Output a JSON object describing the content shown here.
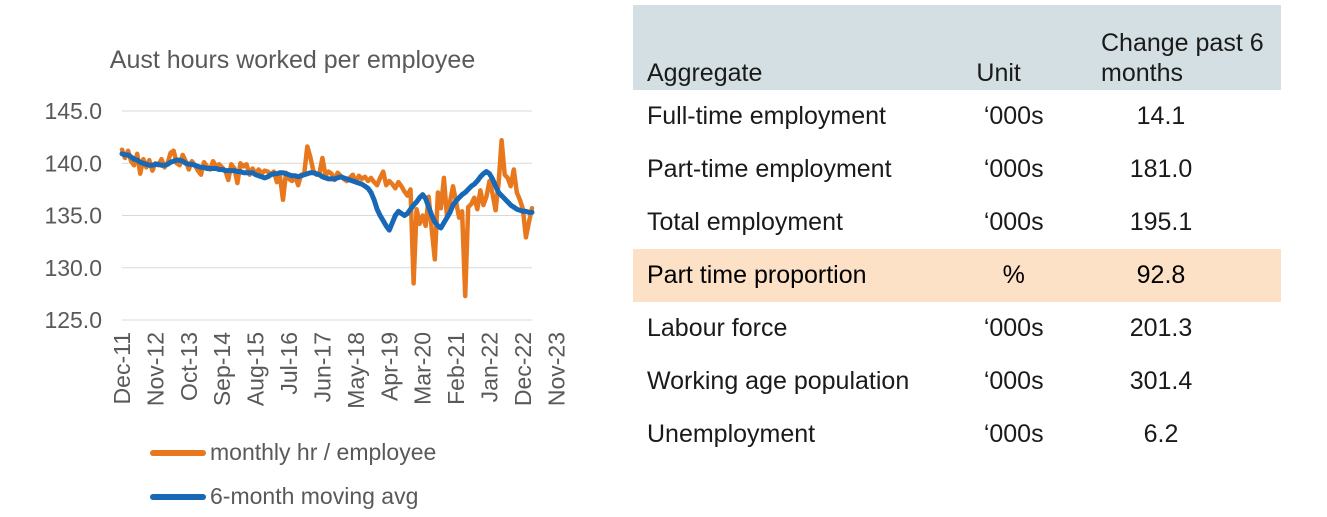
{
  "chart_data": {
    "type": "line",
    "title": "Aust hours worked per employee",
    "xlabel": "",
    "ylabel": "",
    "ylim": [
      125,
      145
    ],
    "yticks": [
      "125.0",
      "130.0",
      "135.0",
      "140.0",
      "145.0"
    ],
    "xticks": [
      "Dec-11",
      "Nov-12",
      "Oct-13",
      "Sep-14",
      "Aug-15",
      "Jul-16",
      "Jun-17",
      "May-18",
      "Apr-19",
      "Mar-20",
      "Feb-21",
      "Jan-22",
      "Dec-22",
      "Nov-23"
    ],
    "x_start": "2011-12",
    "grid": "horizontal",
    "legend_position": "bottom",
    "series": [
      {
        "name": "monthly hr / employee",
        "color": "#e8781e",
        "values": [
          141.3,
          140.5,
          141.2,
          140.2,
          139.8,
          140.9,
          139.0,
          140.4,
          139.6,
          140.3,
          139.3,
          140.0,
          139.8,
          140.4,
          139.6,
          140.0,
          141.0,
          141.2,
          140.0,
          139.8,
          140.8,
          140.2,
          139.4,
          140.2,
          139.8,
          139.3,
          138.9,
          140.1,
          139.7,
          139.4,
          140.2,
          139.7,
          139.9,
          139.6,
          139.3,
          138.4,
          139.9,
          139.5,
          138.1,
          140.0,
          139.7,
          139.9,
          138.9,
          139.5,
          139.0,
          139.4,
          139.0,
          139.3,
          139.2,
          138.9,
          139.2,
          138.2,
          138.8,
          136.5,
          139.1,
          138.5,
          138.3,
          138.8,
          137.9,
          138.9,
          139.0,
          141.6,
          140.6,
          139.3,
          138.9,
          139.0,
          140.5,
          138.8,
          139.2,
          139.0,
          138.4,
          139.1,
          138.8,
          138.5,
          138.3,
          138.6,
          138.9,
          138.2,
          138.8,
          138.5,
          138.7,
          138.3,
          138.6,
          138.2,
          137.9,
          138.6,
          139.2,
          137.9,
          138.3,
          138.0,
          137.6,
          138.2,
          137.8,
          137.3,
          136.9,
          137.5,
          128.5,
          135.6,
          134.2,
          135.0,
          134.0,
          136.8,
          133.6,
          130.8,
          137.2,
          135.7,
          138.6,
          134.9,
          136.3,
          137.8,
          136.3,
          134.8,
          135.4,
          127.3,
          135.8,
          136.1,
          136.7,
          135.6,
          137.4,
          136.0,
          136.8,
          138.3,
          137.1,
          135.5,
          138.1,
          142.2,
          138.9,
          138.6,
          137.8,
          139.4,
          137.2,
          136.5,
          135.6,
          132.9,
          134.4,
          135.7
        ],
        "note_values_are_monthly_from_Dec-11": true
      },
      {
        "name": "6-month moving avg",
        "color": "#1768b5",
        "values": [
          140.9,
          140.8,
          140.8,
          140.6,
          140.4,
          140.3,
          140.1,
          140.0,
          139.9,
          139.8,
          139.8,
          139.9,
          139.9,
          139.8,
          139.8,
          139.9,
          140.1,
          140.2,
          140.3,
          140.3,
          140.2,
          140.0,
          139.9,
          139.9,
          139.8,
          139.7,
          139.6,
          139.6,
          139.5,
          139.5,
          139.5,
          139.5,
          139.4,
          139.4,
          139.3,
          139.3,
          139.3,
          139.3,
          139.2,
          139.2,
          139.1,
          139.1,
          139.1,
          139.1,
          138.9,
          138.8,
          138.7,
          138.6,
          138.7,
          138.9,
          139.0,
          139.0,
          139.1,
          139.1,
          139.0,
          138.9,
          138.8,
          138.8,
          138.7,
          138.8,
          138.9,
          139.0,
          139.1,
          139.1,
          139.0,
          138.9,
          138.7,
          138.6,
          138.5,
          138.5,
          138.5,
          138.6,
          138.7,
          138.6,
          138.5,
          138.4,
          138.3,
          138.2,
          138.1,
          138.0,
          137.8,
          137.6,
          137.2,
          136.5,
          135.6,
          135.0,
          134.5,
          134.0,
          133.6,
          134.3,
          135.0,
          135.4,
          135.2,
          135.0,
          135.2,
          135.6,
          136.0,
          136.3,
          136.7,
          137.0,
          136.6,
          135.8,
          135.0,
          134.4,
          134.0,
          133.8,
          134.3,
          134.8,
          135.3,
          136.0,
          136.4,
          136.7,
          137.0,
          137.2,
          137.5,
          137.8,
          138.0,
          138.3,
          138.7,
          139.0,
          139.2,
          139.0,
          138.5,
          137.8,
          137.2,
          136.9,
          136.6,
          136.3,
          136.0,
          135.8,
          135.6,
          135.5,
          135.4,
          135.4,
          135.3,
          135.3
        ]
      }
    ]
  },
  "table": {
    "headers": {
      "aggregate": "Aggregate",
      "unit": "Unit",
      "change": "Change past 6 months"
    },
    "rows": [
      {
        "aggregate": "Full-time employment",
        "unit": "‘000s",
        "change": "14.1"
      },
      {
        "aggregate": "Part-time employment",
        "unit": "‘000s",
        "change": "181.0"
      },
      {
        "aggregate": "Total employment",
        "unit": "‘000s",
        "change": "195.1"
      },
      {
        "aggregate": "Part time proportion",
        "unit": "%",
        "change": "92.8"
      },
      {
        "aggregate": "Labour force",
        "unit": "‘000s",
        "change": "201.3"
      },
      {
        "aggregate": "Working age population",
        "unit": "‘000s",
        "change": "301.4"
      },
      {
        "aggregate": "Unemployment",
        "unit": "‘000s",
        "change": "6.2"
      }
    ],
    "highlight_color": "#fce1c7",
    "header_color": "#d3dfe2"
  }
}
